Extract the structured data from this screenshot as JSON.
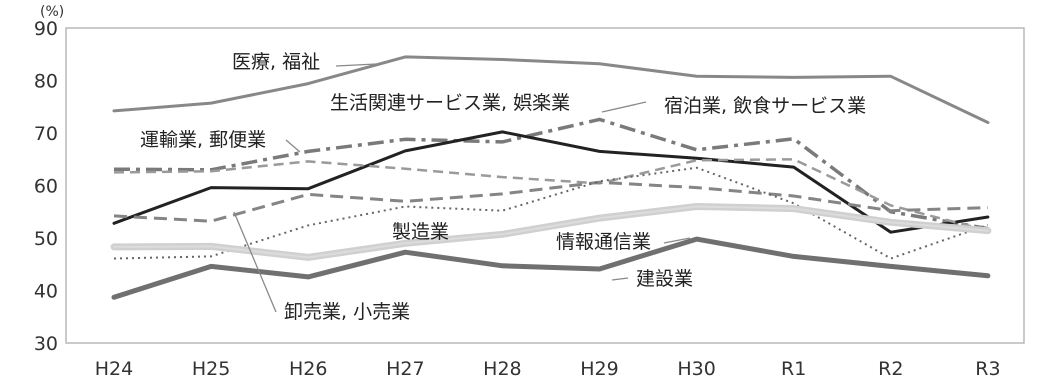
{
  "chart_data": {
    "type": "line",
    "title": "",
    "xlabel": "",
    "ylabel": "",
    "y_unit": "(%)",
    "ylim": [
      30,
      90
    ],
    "yticks": [
      30,
      40,
      50,
      60,
      70,
      80,
      90
    ],
    "grid": false,
    "legend": "none",
    "categories": [
      "H24",
      "H25",
      "H26",
      "H27",
      "H28",
      "H29",
      "H30",
      "R1",
      "R2",
      "R3"
    ],
    "series": [
      {
        "name": "医療, 福祉",
        "color": "#888888",
        "style": "solid",
        "width": 3,
        "values": [
          74.2,
          75.7,
          79.4,
          84.5,
          84.0,
          83.2,
          80.8,
          80.6,
          80.8,
          72.0
        ]
      },
      {
        "name": "宿泊業, 飲食サービス業",
        "color": "#7a7a7a",
        "style": "dashdot",
        "width": 3.5,
        "values": [
          63.1,
          63.0,
          66.5,
          68.8,
          68.3,
          72.6,
          66.8,
          68.9,
          55.0,
          51.8
        ]
      },
      {
        "name": "生活関連サービス業, 娯楽業",
        "color": "#222222",
        "style": "solid",
        "width": 3,
        "values": [
          52.8,
          59.6,
          59.4,
          66.6,
          70.2,
          66.5,
          65.2,
          63.5,
          51.1,
          54.0
        ]
      },
      {
        "name": "運輸業, 郵便業",
        "color": "#9a9a9a",
        "style": "dashed",
        "width": 2.5,
        "values": [
          62.5,
          62.7,
          64.6,
          63.2,
          61.6,
          60.4,
          64.8,
          65.0,
          56.2,
          51.4
        ]
      },
      {
        "name": "卸売業, 小売業",
        "color": "#858585",
        "style": "longdash",
        "width": 3,
        "values": [
          54.2,
          53.2,
          58.3,
          57.0,
          58.4,
          60.6,
          59.6,
          58.0,
          55.2,
          55.8
        ]
      },
      {
        "name": "",
        "color": "#666666",
        "style": "dotted",
        "width": 2,
        "values": [
          46.1,
          46.5,
          52.4,
          56.0,
          55.2,
          60.8,
          63.4,
          56.6,
          46.1,
          52.5
        ]
      },
      {
        "name": "製造業",
        "color": "#d0d0d0",
        "style": "solid",
        "width": 7,
        "values": [
          48.3,
          48.4,
          46.3,
          49.0,
          50.7,
          53.8,
          56.0,
          55.6,
          53.0,
          51.4
        ]
      },
      {
        "name": "情報通信業",
        "color": "#dcdcdc",
        "style": "solid",
        "width": 2,
        "values": [
          48.3,
          48.4,
          46.3,
          49.0,
          50.7,
          53.8,
          56.0,
          55.6,
          53.0,
          51.4
        ]
      },
      {
        "name": "建設業",
        "color": "#707070",
        "style": "solid",
        "width": 5,
        "values": [
          38.7,
          44.6,
          42.6,
          47.3,
          44.7,
          44.1,
          49.8,
          46.5,
          44.6,
          42.8
        ]
      }
    ]
  }
}
